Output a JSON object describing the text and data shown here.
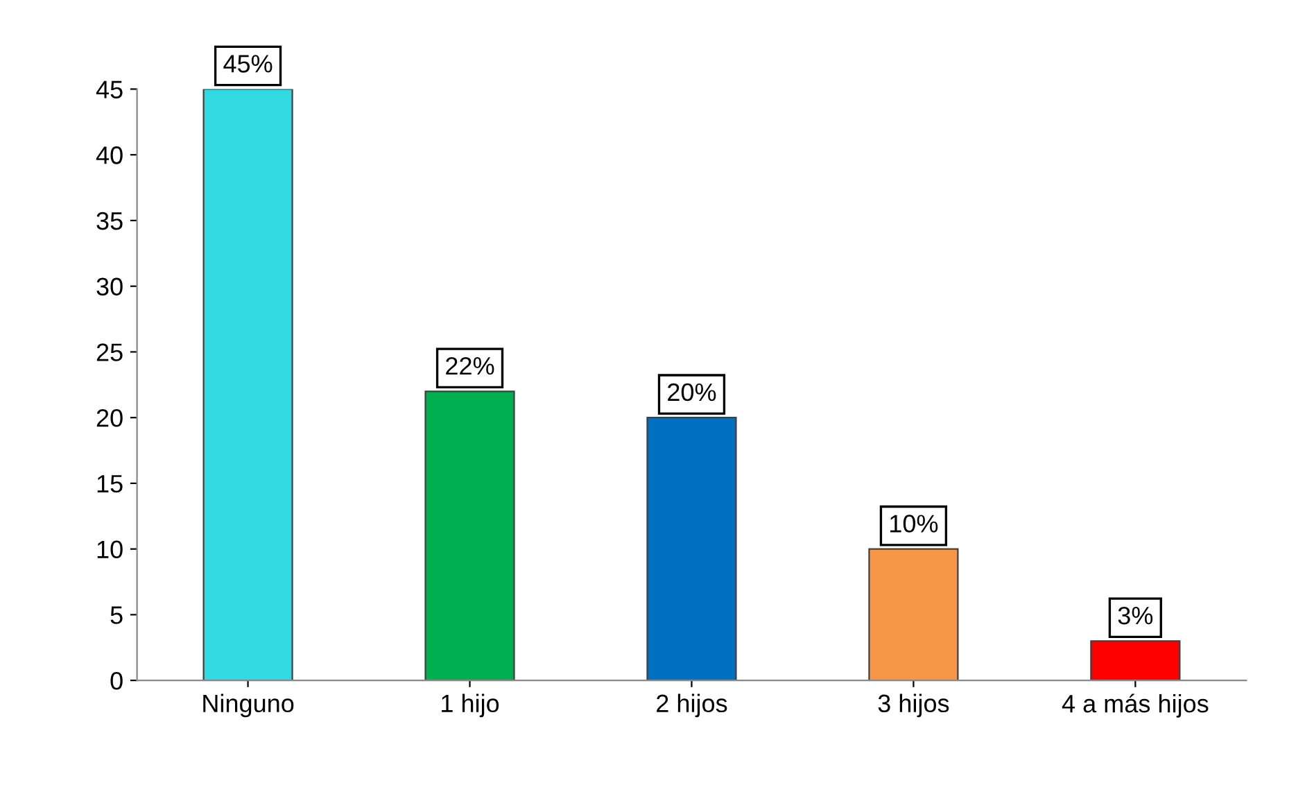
{
  "chart_data": {
    "type": "bar",
    "categories": [
      "Ninguno",
      "1 hijo",
      "2 hijos",
      "3 hijos",
      "4 a más hijos"
    ],
    "values": [
      45,
      22,
      20,
      10,
      3
    ],
    "colors": [
      "#33d9e0",
      "#00b050",
      "#0070c0",
      "#f79646",
      "#ff0000"
    ],
    "value_labels": [
      "45%",
      "22%",
      "20%",
      "10%",
      "3%"
    ],
    "ylim": [
      0,
      45
    ],
    "yticks": [
      0,
      5,
      10,
      15,
      20,
      25,
      30,
      35,
      40,
      45
    ],
    "grid": false,
    "legend": false
  }
}
